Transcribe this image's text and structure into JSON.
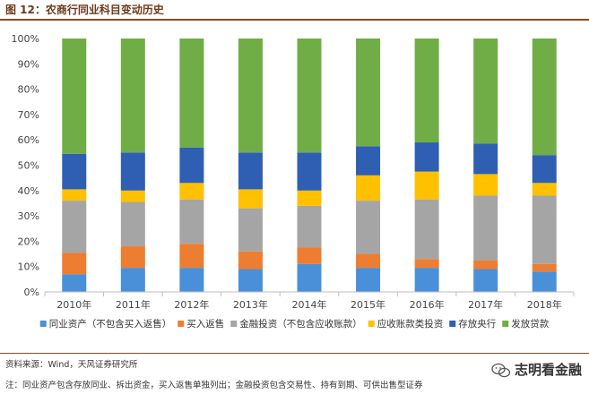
{
  "figure": {
    "title": "图 12：农商行同业科目变动历史",
    "source": "资料来源：Wind，天风证券研究所",
    "note": "注：同业资产包含存放同业、拆出资金，买入返售单独列出；金融投资包含交易性、持有到期、可供出售型证券",
    "watermark": "志明看金融",
    "watermark_icon": "wechat-logo-icon"
  },
  "colors": {
    "title": "#6b3a1a",
    "rule": "#8a4a1c",
    "axis": "#bfbfbf"
  },
  "chart_data": {
    "type": "bar",
    "stacked": true,
    "percent": true,
    "categories": [
      "2010年",
      "2011年",
      "2012年",
      "2013年",
      "2014年",
      "2015年",
      "2016年",
      "2017年",
      "2018年"
    ],
    "y_ticks": [
      "0%",
      "10%",
      "20%",
      "30%",
      "40%",
      "50%",
      "60%",
      "70%",
      "80%",
      "90%",
      "100%"
    ],
    "ylim": [
      0,
      100
    ],
    "legend_position": "bottom",
    "series": [
      {
        "name": "同业资产（不包含买入返售）",
        "color": "#4a90d9",
        "values": [
          7,
          9.5,
          9.5,
          9,
          11,
          9.5,
          9.5,
          9,
          8
        ]
      },
      {
        "name": "买入返售",
        "color": "#ed7d31",
        "values": [
          8.5,
          8.5,
          9.5,
          7,
          6.5,
          5.5,
          3.5,
          3.5,
          3
        ]
      },
      {
        "name": "金融投资（不包含应收账款）",
        "color": "#a5a5a5",
        "values": [
          20.5,
          17.5,
          17.5,
          17,
          16.5,
          21,
          23.5,
          25.5,
          27
        ]
      },
      {
        "name": "应收账款类投资",
        "color": "#ffc000",
        "values": [
          4.5,
          4.5,
          6.5,
          7.5,
          6,
          10,
          11,
          8.5,
          5
        ]
      },
      {
        "name": "存放央行",
        "color": "#2f5fb3",
        "values": [
          14,
          15,
          14,
          14.5,
          15,
          11.5,
          11.5,
          12,
          11
        ]
      },
      {
        "name": "发放贷款",
        "color": "#70ad47",
        "values": [
          45.5,
          45,
          43,
          45,
          45,
          42.5,
          41,
          41.5,
          46
        ]
      }
    ]
  }
}
